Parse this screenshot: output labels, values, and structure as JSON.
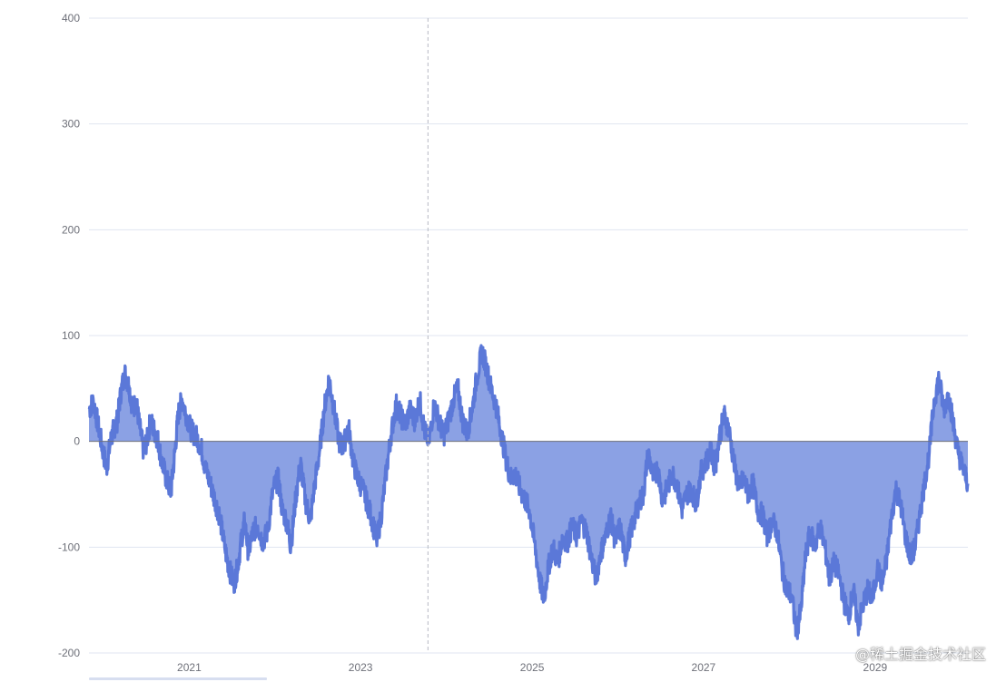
{
  "chart_data": {
    "type": "area",
    "title": "",
    "xlabel": "",
    "ylabel": "",
    "ylim": [
      -200,
      400
    ],
    "xlim": [
      "2019-11-01",
      "2030-01-31"
    ],
    "y_ticks": [
      400,
      300,
      200,
      100,
      0,
      -100,
      -200
    ],
    "x_ticks": [
      "2021",
      "2023",
      "2025",
      "2027",
      "2029"
    ],
    "grid": "horizontal",
    "fill_baseline": 0,
    "colors": {
      "line": "#5b78d8",
      "area": "#8ba1e4",
      "grid": "#e0e6f1",
      "axis_text": "#6e7079"
    },
    "pointer_date": "2023-10-15",
    "series": [
      {
        "values": [
          [
            "2019-11-01",
            30
          ],
          [
            "2019-11-20",
            38
          ],
          [
            "2019-12-10",
            15
          ],
          [
            "2019-12-31",
            -10
          ],
          [
            "2020-01-15",
            -25
          ],
          [
            "2020-02-01",
            0
          ],
          [
            "2020-02-15",
            12
          ],
          [
            "2020-03-01",
            20
          ],
          [
            "2020-03-15",
            45
          ],
          [
            "2020-04-01",
            65
          ],
          [
            "2020-04-20",
            52
          ],
          [
            "2020-05-05",
            30
          ],
          [
            "2020-05-20",
            38
          ],
          [
            "2020-06-05",
            12
          ],
          [
            "2020-06-20",
            -8
          ],
          [
            "2020-07-05",
            0
          ],
          [
            "2020-07-20",
            20
          ],
          [
            "2020-08-05",
            10
          ],
          [
            "2020-08-20",
            2
          ],
          [
            "2020-09-05",
            -18
          ],
          [
            "2020-09-25",
            -35
          ],
          [
            "2020-10-15",
            -48
          ],
          [
            "2020-11-01",
            -10
          ],
          [
            "2020-11-15",
            25
          ],
          [
            "2020-12-01",
            40
          ],
          [
            "2020-12-20",
            25
          ],
          [
            "2021-01-10",
            10
          ],
          [
            "2021-01-30",
            5
          ],
          [
            "2021-02-20",
            -5
          ],
          [
            "2021-03-10",
            -25
          ],
          [
            "2021-04-01",
            -40
          ],
          [
            "2021-04-20",
            -55
          ],
          [
            "2021-05-10",
            -70
          ],
          [
            "2021-06-01",
            -100
          ],
          [
            "2021-06-20",
            -120
          ],
          [
            "2021-07-10",
            -135
          ],
          [
            "2021-07-25",
            -120
          ],
          [
            "2021-08-10",
            -95
          ],
          [
            "2021-08-25",
            -75
          ],
          [
            "2021-09-10",
            -105
          ],
          [
            "2021-09-30",
            -85
          ],
          [
            "2021-10-20",
            -80
          ],
          [
            "2021-11-10",
            -95
          ],
          [
            "2021-12-01",
            -85
          ],
          [
            "2021-12-25",
            -45
          ],
          [
            "2022-01-15",
            -35
          ],
          [
            "2022-02-01",
            -65
          ],
          [
            "2022-02-20",
            -75
          ],
          [
            "2022-03-10",
            -100
          ],
          [
            "2022-03-30",
            -55
          ],
          [
            "2022-04-20",
            -20
          ],
          [
            "2022-05-10",
            -55
          ],
          [
            "2022-06-01",
            -75
          ],
          [
            "2022-06-20",
            -40
          ],
          [
            "2022-07-10",
            -10
          ],
          [
            "2022-07-30",
            30
          ],
          [
            "2022-08-20",
            60
          ],
          [
            "2022-09-10",
            30
          ],
          [
            "2022-10-01",
            0
          ],
          [
            "2022-10-20",
            -5
          ],
          [
            "2022-11-10",
            15
          ],
          [
            "2022-12-01",
            -20
          ],
          [
            "2022-12-20",
            -35
          ],
          [
            "2023-01-10",
            -45
          ],
          [
            "2023-02-01",
            -60
          ],
          [
            "2023-02-20",
            -75
          ],
          [
            "2023-03-10",
            -95
          ],
          [
            "2023-03-30",
            -70
          ],
          [
            "2023-04-20",
            -30
          ],
          [
            "2023-05-10",
            5
          ],
          [
            "2023-06-01",
            35
          ],
          [
            "2023-06-20",
            25
          ],
          [
            "2023-07-10",
            15
          ],
          [
            "2023-07-30",
            30
          ],
          [
            "2023-08-20",
            20
          ],
          [
            "2023-09-10",
            40
          ],
          [
            "2023-09-30",
            10
          ],
          [
            "2023-10-20",
            0
          ],
          [
            "2023-11-10",
            35
          ],
          [
            "2023-12-01",
            20
          ],
          [
            "2023-12-20",
            5
          ],
          [
            "2024-01-10",
            20
          ],
          [
            "2024-02-01",
            40
          ],
          [
            "2024-02-20",
            50
          ],
          [
            "2024-03-10",
            20
          ],
          [
            "2024-03-30",
            8
          ],
          [
            "2024-04-20",
            30
          ],
          [
            "2024-05-10",
            60
          ],
          [
            "2024-06-01",
            85
          ],
          [
            "2024-06-20",
            70
          ],
          [
            "2024-07-10",
            50
          ],
          [
            "2024-07-30",
            35
          ],
          [
            "2024-08-20",
            10
          ],
          [
            "2024-09-10",
            -15
          ],
          [
            "2024-09-30",
            -35
          ],
          [
            "2024-10-20",
            -30
          ],
          [
            "2024-11-10",
            -45
          ],
          [
            "2024-12-01",
            -55
          ],
          [
            "2024-12-20",
            -65
          ],
          [
            "2025-01-10",
            -95
          ],
          [
            "2025-02-01",
            -130
          ],
          [
            "2025-02-20",
            -150
          ],
          [
            "2025-03-10",
            -120
          ],
          [
            "2025-03-30",
            -100
          ],
          [
            "2025-04-20",
            -115
          ],
          [
            "2025-05-10",
            -90
          ],
          [
            "2025-06-01",
            -95
          ],
          [
            "2025-06-20",
            -80
          ],
          [
            "2025-07-10",
            -90
          ],
          [
            "2025-07-30",
            -75
          ],
          [
            "2025-08-20",
            -85
          ],
          [
            "2025-09-10",
            -110
          ],
          [
            "2025-09-30",
            -130
          ],
          [
            "2025-10-20",
            -105
          ],
          [
            "2025-11-10",
            -90
          ],
          [
            "2025-12-01",
            -70
          ],
          [
            "2025-12-20",
            -95
          ],
          [
            "2026-01-10",
            -80
          ],
          [
            "2026-02-01",
            -110
          ],
          [
            "2026-02-20",
            -90
          ],
          [
            "2026-03-10",
            -75
          ],
          [
            "2026-03-30",
            -60
          ],
          [
            "2026-04-20",
            -50
          ],
          [
            "2026-05-10",
            -10
          ],
          [
            "2026-06-01",
            -35
          ],
          [
            "2026-06-20",
            -25
          ],
          [
            "2026-07-10",
            -55
          ],
          [
            "2026-07-30",
            -45
          ],
          [
            "2026-08-20",
            -30
          ],
          [
            "2026-09-10",
            -40
          ],
          [
            "2026-09-30",
            -65
          ],
          [
            "2026-10-20",
            -50
          ],
          [
            "2026-11-10",
            -45
          ],
          [
            "2026-12-01",
            -60
          ],
          [
            "2026-12-20",
            -30
          ],
          [
            "2027-01-10",
            -20
          ],
          [
            "2027-02-01",
            -10
          ],
          [
            "2027-02-20",
            -25
          ],
          [
            "2027-03-10",
            5
          ],
          [
            "2027-03-30",
            25
          ],
          [
            "2027-04-20",
            10
          ],
          [
            "2027-05-10",
            -20
          ],
          [
            "2027-06-01",
            -45
          ],
          [
            "2027-06-20",
            -35
          ],
          [
            "2027-07-10",
            -50
          ],
          [
            "2027-07-30",
            -40
          ],
          [
            "2027-08-20",
            -65
          ],
          [
            "2027-09-10",
            -70
          ],
          [
            "2027-09-30",
            -90
          ],
          [
            "2027-10-20",
            -75
          ],
          [
            "2027-11-10",
            -85
          ],
          [
            "2027-12-01",
            -120
          ],
          [
            "2027-12-20",
            -140
          ],
          [
            "2028-01-10",
            -145
          ],
          [
            "2028-02-01",
            -180
          ],
          [
            "2028-02-20",
            -160
          ],
          [
            "2028-03-10",
            -110
          ],
          [
            "2028-03-30",
            -85
          ],
          [
            "2028-04-20",
            -100
          ],
          [
            "2028-05-10",
            -80
          ],
          [
            "2028-06-01",
            -100
          ],
          [
            "2028-06-20",
            -130
          ],
          [
            "2028-07-10",
            -115
          ],
          [
            "2028-07-30",
            -125
          ],
          [
            "2028-08-20",
            -150
          ],
          [
            "2028-09-10",
            -165
          ],
          [
            "2028-09-30",
            -140
          ],
          [
            "2028-10-20",
            -175
          ],
          [
            "2028-11-10",
            -155
          ],
          [
            "2028-12-01",
            -140
          ],
          [
            "2028-12-20",
            -150
          ],
          [
            "2029-01-10",
            -120
          ],
          [
            "2029-02-01",
            -135
          ],
          [
            "2029-02-20",
            -110
          ],
          [
            "2029-03-10",
            -75
          ],
          [
            "2029-03-30",
            -45
          ],
          [
            "2029-04-20",
            -60
          ],
          [
            "2029-05-10",
            -90
          ],
          [
            "2029-06-01",
            -110
          ],
          [
            "2029-06-20",
            -100
          ],
          [
            "2029-07-10",
            -70
          ],
          [
            "2029-07-30",
            -40
          ],
          [
            "2029-08-20",
            -10
          ],
          [
            "2029-09-10",
            40
          ],
          [
            "2029-09-30",
            60
          ],
          [
            "2029-10-20",
            30
          ],
          [
            "2029-11-10",
            45
          ],
          [
            "2029-12-01",
            15
          ],
          [
            "2029-12-20",
            -10
          ],
          [
            "2030-01-10",
            -25
          ],
          [
            "2030-01-31",
            -40
          ]
        ]
      }
    ]
  },
  "watermark": "@稀土掘金技术社区"
}
